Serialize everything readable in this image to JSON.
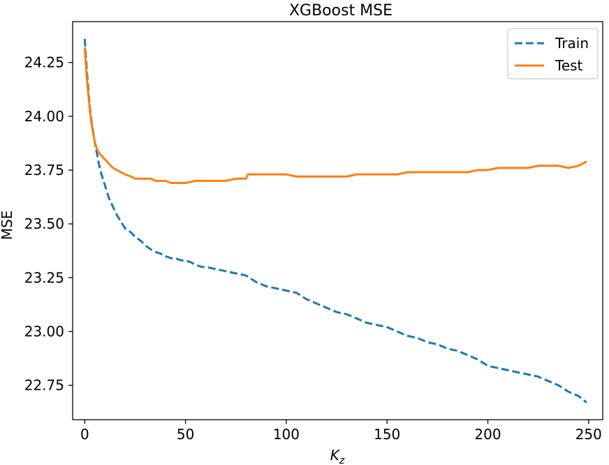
{
  "chart_data": {
    "type": "line",
    "title": "XGBoost MSE",
    "xlabel_main": "K",
    "xlabel_sub": "z",
    "ylabel": "MSE",
    "xlim": [
      -6,
      257
    ],
    "ylim": [
      22.59,
      24.44
    ],
    "xticks": [
      0,
      50,
      100,
      150,
      200,
      250
    ],
    "xtick_labels": [
      "0",
      "50",
      "100",
      "150",
      "200",
      "250"
    ],
    "yticks": [
      22.75,
      23.0,
      23.25,
      23.5,
      23.75,
      24.0,
      24.25
    ],
    "ytick_labels": [
      "22.75",
      "23.00",
      "23.25",
      "23.50",
      "23.75",
      "24.00",
      "24.25"
    ],
    "grid": false,
    "legend_position": "top-right",
    "series": [
      {
        "name": "Train",
        "color": "#1f77b4",
        "style": "dashed",
        "x": [
          0,
          1,
          2,
          3,
          4,
          5,
          6,
          7,
          8,
          10,
          12,
          14,
          16,
          18,
          20,
          23,
          25,
          28,
          30,
          33,
          35,
          38,
          40,
          43,
          45,
          48,
          50,
          53,
          55,
          58,
          60,
          65,
          70,
          75,
          80,
          85,
          90,
          95,
          100,
          105,
          110,
          115,
          120,
          125,
          130,
          135,
          140,
          145,
          150,
          155,
          160,
          165,
          170,
          175,
          180,
          185,
          190,
          195,
          200,
          205,
          210,
          215,
          220,
          225,
          230,
          235,
          240,
          245,
          249
        ],
        "y": [
          24.36,
          24.22,
          24.1,
          24.0,
          23.94,
          23.88,
          23.83,
          23.78,
          23.74,
          23.68,
          23.62,
          23.58,
          23.54,
          23.51,
          23.48,
          23.46,
          23.44,
          23.42,
          23.4,
          23.38,
          23.37,
          23.36,
          23.35,
          23.34,
          23.34,
          23.33,
          23.33,
          23.32,
          23.31,
          23.3,
          23.3,
          23.29,
          23.28,
          23.27,
          23.26,
          23.23,
          23.21,
          23.2,
          23.19,
          23.18,
          23.15,
          23.13,
          23.11,
          23.09,
          23.08,
          23.06,
          23.04,
          23.03,
          23.02,
          23.0,
          22.98,
          22.97,
          22.95,
          22.94,
          22.92,
          22.91,
          22.89,
          22.87,
          22.84,
          22.83,
          22.82,
          22.81,
          22.8,
          22.79,
          22.77,
          22.75,
          22.72,
          22.7,
          22.67
        ]
      },
      {
        "name": "Test",
        "color": "#ff7f0e",
        "style": "solid",
        "x": [
          0,
          1,
          2,
          3,
          4,
          5,
          6,
          7,
          8,
          10,
          12,
          14,
          16,
          18,
          20,
          23,
          25,
          28,
          30,
          33,
          35,
          38,
          40,
          43,
          45,
          48,
          50,
          55,
          60,
          65,
          70,
          75,
          80,
          81,
          85,
          90,
          95,
          100,
          105,
          110,
          115,
          120,
          125,
          130,
          135,
          140,
          145,
          150,
          155,
          160,
          165,
          170,
          175,
          180,
          185,
          190,
          195,
          200,
          205,
          210,
          215,
          220,
          225,
          230,
          235,
          240,
          245,
          249
        ],
        "y": [
          24.32,
          24.18,
          24.08,
          23.99,
          23.93,
          23.88,
          23.85,
          23.83,
          23.82,
          23.8,
          23.78,
          23.76,
          23.75,
          23.74,
          23.73,
          23.72,
          23.71,
          23.71,
          23.71,
          23.71,
          23.7,
          23.7,
          23.7,
          23.69,
          23.69,
          23.69,
          23.69,
          23.7,
          23.7,
          23.7,
          23.7,
          23.71,
          23.71,
          23.73,
          23.73,
          23.73,
          23.73,
          23.73,
          23.72,
          23.72,
          23.72,
          23.72,
          23.72,
          23.72,
          23.73,
          23.73,
          23.73,
          23.73,
          23.73,
          23.74,
          23.74,
          23.74,
          23.74,
          23.74,
          23.74,
          23.74,
          23.75,
          23.75,
          23.76,
          23.76,
          23.76,
          23.76,
          23.77,
          23.77,
          23.77,
          23.76,
          23.77,
          23.79
        ]
      }
    ]
  }
}
